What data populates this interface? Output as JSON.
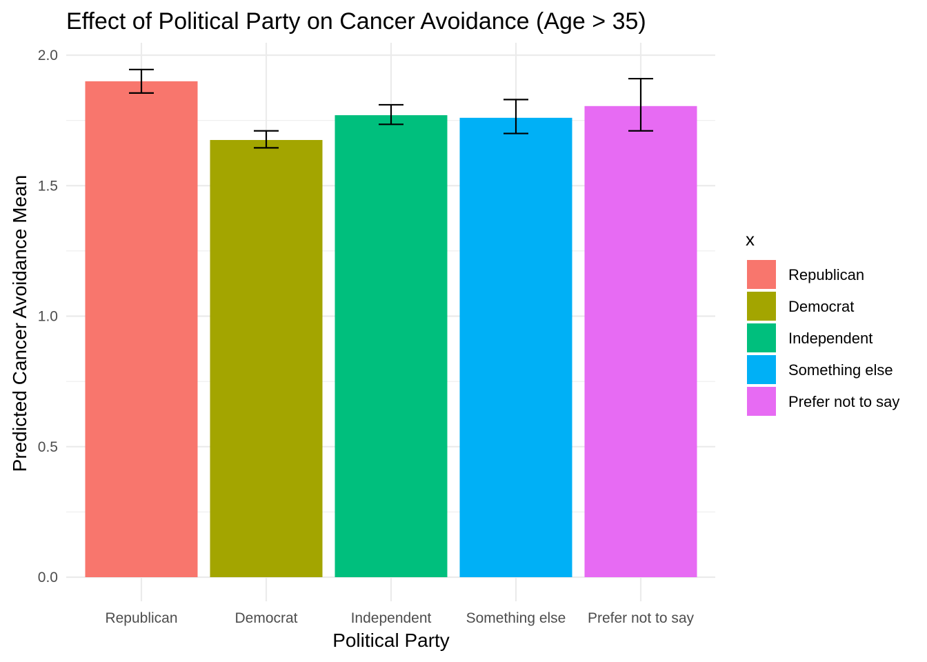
{
  "chart_data": {
    "type": "bar",
    "title": "Effect of Political Party on Cancer Avoidance (Age > 35)",
    "xlabel": "Political Party",
    "ylabel": "Predicted Cancer Avoidance Mean",
    "categories": [
      "Republican",
      "Democrat",
      "Independent",
      "Something else",
      "Prefer not to say"
    ],
    "values": [
      1.9,
      1.675,
      1.77,
      1.76,
      1.805
    ],
    "error_low": [
      1.855,
      1.645,
      1.735,
      1.7,
      1.71
    ],
    "error_high": [
      1.945,
      1.71,
      1.81,
      1.83,
      1.91
    ],
    "colors": [
      "#F8766D",
      "#A3A500",
      "#00BF7D",
      "#00B0F6",
      "#E76BF3"
    ],
    "ylim": [
      0,
      2.0
    ],
    "y_ticks": [
      "0.0",
      "0.5",
      "1.0",
      "1.5",
      "2.0"
    ],
    "grid": true,
    "legend": {
      "title": "x",
      "position": "right",
      "entries": [
        "Republican",
        "Democrat",
        "Independent",
        "Something else",
        "Prefer not to say"
      ]
    }
  }
}
